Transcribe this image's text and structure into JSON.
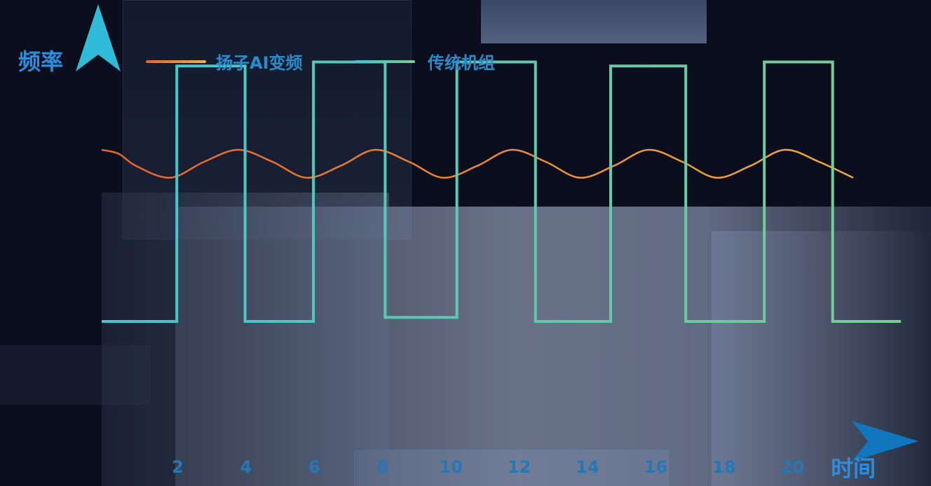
{
  "chart_data": {
    "type": "line",
    "title": "",
    "xlabel": "时间",
    "ylabel": "频率",
    "x_ticks": [
      2,
      4,
      6,
      8,
      10,
      12,
      14,
      16,
      18,
      20
    ],
    "xlim": [
      0,
      23.5
    ],
    "ylim": [
      0,
      10
    ],
    "grid": false,
    "legend_position": "top",
    "series": [
      {
        "name": "扬子AI变频",
        "color": "#e8622c",
        "color_end": "#f0b040",
        "points": [
          [
            0,
            7.3
          ],
          [
            0.5,
            7.2
          ],
          [
            1,
            6.9
          ],
          [
            2,
            6.6
          ],
          [
            3,
            7.0
          ],
          [
            4,
            7.3
          ],
          [
            5,
            7.0
          ],
          [
            6,
            6.6
          ],
          [
            7,
            6.9
          ],
          [
            8,
            7.3
          ],
          [
            9,
            7.0
          ],
          [
            10,
            6.6
          ],
          [
            11,
            6.9
          ],
          [
            12,
            7.3
          ],
          [
            13,
            7.0
          ],
          [
            14,
            6.6
          ],
          [
            15,
            6.9
          ],
          [
            16,
            7.3
          ],
          [
            17,
            7.0
          ],
          [
            18,
            6.6
          ],
          [
            19,
            6.9
          ],
          [
            20,
            7.3
          ],
          [
            21,
            7.0
          ],
          [
            22,
            6.6
          ]
        ]
      },
      {
        "name": "传统机组",
        "color": "#44c4d0",
        "color_end": "#7ccc90",
        "points": [
          [
            0,
            3.0
          ],
          [
            2.2,
            3.0
          ],
          [
            2.2,
            9.4
          ],
          [
            4.2,
            9.4
          ],
          [
            4.2,
            3.0
          ],
          [
            6.2,
            3.0
          ],
          [
            6.2,
            9.5
          ],
          [
            8.3,
            9.5
          ],
          [
            8.3,
            3.1
          ],
          [
            10.4,
            3.1
          ],
          [
            10.4,
            9.5
          ],
          [
            12.7,
            9.5
          ],
          [
            12.7,
            3.0
          ],
          [
            14.9,
            3.0
          ],
          [
            14.9,
            9.4
          ],
          [
            17.1,
            9.4
          ],
          [
            17.1,
            3.0
          ],
          [
            19.4,
            3.0
          ],
          [
            19.4,
            9.5
          ],
          [
            21.4,
            9.5
          ],
          [
            21.4,
            3.0
          ],
          [
            23.4,
            3.0
          ]
        ]
      }
    ]
  }
}
